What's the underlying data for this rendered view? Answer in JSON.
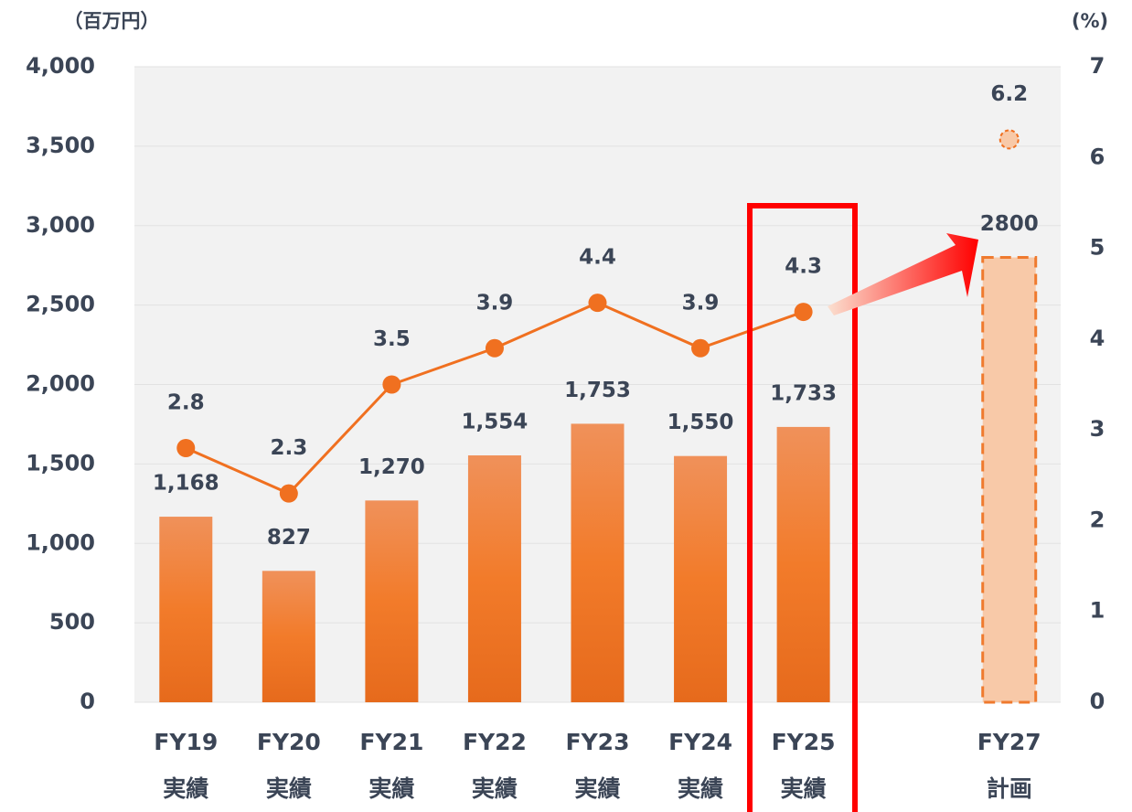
{
  "chart_data": {
    "type": "bar_line",
    "y_label": "（百万円）",
    "y2_label": "(%)",
    "categories": [
      "FY19",
      "FY20",
      "FY21",
      "FY22",
      "FY23",
      "FY24",
      "FY25",
      null,
      "FY27"
    ],
    "category_sublabels": [
      "実績",
      "実績",
      "実績",
      "実績",
      "実績",
      "実績",
      "実績",
      null,
      "計画"
    ],
    "series": [
      {
        "type": "bar",
        "color": "#ef7a2e",
        "values": [
          1168,
          827,
          1270,
          1554,
          1753,
          1550,
          1733,
          null,
          2800
        ],
        "value_labels": [
          "1,168",
          "827",
          "1,270",
          "1,554",
          "1,753",
          "1,550",
          "1,733",
          null,
          "2800"
        ]
      },
      {
        "type": "line",
        "axis": "y2",
        "color": "#f07020",
        "values": [
          2.8,
          2.3,
          3.5,
          3.9,
          4.4,
          3.9,
          4.3,
          null,
          6.2
        ]
      }
    ],
    "ylim": [
      0,
      4000
    ],
    "yticks": [
      0,
      500,
      {
        "value": 1000,
        "label": "1,000"
      },
      {
        "value": 1500,
        "label": "1,500"
      },
      {
        "value": 2000,
        "label": "2,000"
      },
      {
        "value": 2500,
        "label": "2,500"
      },
      {
        "value": 3000,
        "label": "3,000"
      },
      {
        "value": 3500,
        "label": "3,500"
      },
      {
        "value": 4000,
        "label": "4,000"
      }
    ],
    "y2lim": [
      0,
      7
    ],
    "y2ticks": [
      0,
      1,
      2,
      3,
      4,
      5,
      6,
      7
    ],
    "grid": true
  }
}
